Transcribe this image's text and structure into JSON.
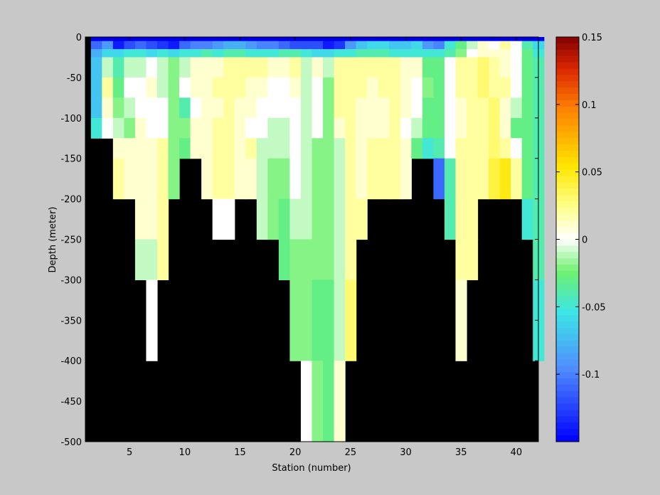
{
  "chart_data": {
    "type": "heatmap",
    "title": "",
    "xlabel": "Station (number)",
    "ylabel": "Depth (meter)",
    "xlim": [
      1,
      42
    ],
    "ylim": [
      -500,
      0
    ],
    "xticks": [
      5,
      10,
      15,
      20,
      25,
      30,
      35,
      40
    ],
    "yticks": [
      0,
      -50,
      -100,
      -150,
      -200,
      -250,
      -300,
      -350,
      -400,
      -450,
      -500
    ],
    "colorbar": {
      "colormap": "jet-like with white at zero",
      "range": [
        -0.15,
        0.15
      ],
      "ticks": [
        0.15,
        0.1,
        0.05,
        0,
        -0.05,
        -0.1
      ],
      "tick_labels": [
        "0.15",
        "0.1",
        "0.05",
        "0",
        "-0.05",
        "-0.1"
      ]
    },
    "mask_color": "#000000",
    "stations": [
      2,
      3,
      4,
      5,
      6,
      7,
      8,
      9,
      10,
      11,
      12,
      13,
      14,
      15,
      16,
      17,
      18,
      19,
      20,
      21,
      22,
      23,
      24,
      25,
      26,
      27,
      28,
      29,
      30,
      31,
      32,
      33,
      34,
      35,
      36,
      37,
      38,
      39,
      40,
      41,
      42
    ],
    "bottom_depth": [
      -125,
      -125,
      -200,
      -200,
      -300,
      -400,
      -200,
      -150,
      -150,
      -200,
      -250,
      -250,
      -200,
      -200,
      -250,
      -250,
      -300,
      -400,
      -400,
      -500,
      -500,
      -500,
      -500,
      -400,
      -250,
      -200,
      -200,
      -200,
      -200,
      -150,
      -150,
      -200,
      -250,
      -400,
      -300,
      -200,
      -200,
      -200,
      -200,
      -400,
      -400
    ],
    "surface_band": {
      "depth": [
        0,
        -5
      ],
      "value": -0.15
    },
    "value_rows": [
      {
        "depth_top": -5,
        "depth_bottom": -15,
        "values": [
          -0.11,
          -0.09,
          -0.14,
          -0.12,
          -0.11,
          -0.12,
          -0.13,
          -0.14,
          -0.11,
          -0.1,
          -0.1,
          -0.09,
          -0.08,
          -0.08,
          -0.09,
          -0.1,
          -0.1,
          -0.11,
          -0.12,
          -0.12,
          -0.12,
          -0.14,
          -0.13,
          -0.09,
          -0.07,
          -0.06,
          -0.06,
          -0.07,
          -0.07,
          -0.06,
          -0.09,
          -0.1,
          -0.05,
          -0.03,
          -0.01,
          0.01,
          0.0,
          0.02,
          0.0,
          -0.04,
          -0.06
        ]
      },
      {
        "depth_top": -15,
        "depth_bottom": -25,
        "values": [
          -0.08,
          -0.06,
          -0.06,
          -0.05,
          -0.05,
          -0.06,
          -0.05,
          -0.06,
          -0.05,
          -0.05,
          -0.04,
          -0.05,
          -0.04,
          -0.04,
          -0.05,
          -0.05,
          -0.05,
          -0.04,
          -0.04,
          -0.05,
          -0.06,
          -0.06,
          -0.05,
          -0.05,
          -0.04,
          -0.04,
          -0.04,
          -0.05,
          -0.05,
          -0.05,
          -0.05,
          -0.05,
          -0.04,
          -0.02,
          0.0,
          0.01,
          0.01,
          0.01,
          0.0,
          -0.03,
          -0.05
        ]
      },
      {
        "depth_top": -25,
        "depth_bottom": -50,
        "values": [
          -0.07,
          -0.01,
          -0.04,
          -0.01,
          -0.01,
          0.0,
          -0.01,
          -0.02,
          -0.01,
          0.01,
          0.01,
          0.01,
          0.02,
          0.02,
          0.02,
          0.02,
          0.01,
          0.01,
          0.02,
          -0.01,
          0.01,
          -0.01,
          0.02,
          0.02,
          0.02,
          0.02,
          0.02,
          0.02,
          0.01,
          0.01,
          -0.03,
          -0.03,
          0.0,
          0.02,
          0.02,
          0.03,
          0.02,
          0.01,
          0.0,
          -0.03,
          -0.04
        ]
      },
      {
        "depth_top": -50,
        "depth_bottom": -75,
        "values": [
          -0.07,
          0.02,
          -0.03,
          0.0,
          0.0,
          0.01,
          -0.01,
          -0.02,
          0.0,
          0.01,
          0.01,
          0.02,
          0.02,
          0.02,
          0.01,
          0.01,
          0.0,
          0.0,
          0.01,
          -0.01,
          0.0,
          -0.02,
          0.02,
          0.02,
          0.02,
          0.01,
          0.02,
          0.02,
          0.01,
          0.0,
          -0.02,
          -0.03,
          0.0,
          0.02,
          0.02,
          0.03,
          0.02,
          0.02,
          0.0,
          -0.03,
          -0.04
        ]
      },
      {
        "depth_top": -75,
        "depth_bottom": -100,
        "values": [
          -0.07,
          0.01,
          -0.02,
          -0.01,
          0.0,
          0.0,
          0.0,
          -0.02,
          -0.04,
          0.0,
          0.01,
          0.01,
          0.02,
          0.01,
          0.01,
          0.0,
          0.0,
          0.0,
          0.0,
          -0.01,
          0.0,
          -0.02,
          0.02,
          0.02,
          0.01,
          0.01,
          0.01,
          0.02,
          0.01,
          0.0,
          -0.03,
          -0.03,
          0.0,
          0.01,
          0.02,
          0.02,
          0.03,
          0.01,
          -0.01,
          -0.03,
          -0.04
        ]
      },
      {
        "depth_top": -100,
        "depth_bottom": -125,
        "values": [
          -0.05,
          0.0,
          -0.01,
          -0.02,
          0.01,
          0.0,
          0.0,
          -0.02,
          -0.02,
          0.01,
          0.01,
          0.02,
          0.02,
          0.01,
          0.0,
          0.0,
          -0.01,
          -0.01,
          0.0,
          -0.01,
          0.0,
          -0.02,
          0.01,
          0.02,
          0.01,
          0.01,
          0.01,
          0.02,
          0.0,
          -0.01,
          -0.03,
          -0.03,
          0.0,
          0.01,
          0.02,
          0.02,
          0.03,
          0.01,
          -0.03,
          -0.03,
          -0.04
        ]
      },
      {
        "depth_top": -125,
        "depth_bottom": -150,
        "values": [
          null,
          null,
          0.01,
          0.01,
          0.01,
          0.01,
          0.02,
          -0.02,
          -0.03,
          0.01,
          0.01,
          0.02,
          0.02,
          0.01,
          0.02,
          -0.01,
          -0.01,
          -0.01,
          0.0,
          -0.01,
          -0.02,
          -0.02,
          -0.01,
          0.02,
          0.01,
          0.02,
          0.02,
          0.02,
          0.01,
          -0.03,
          -0.05,
          -0.04,
          0.0,
          0.02,
          0.02,
          0.02,
          0.03,
          0.02,
          0.0,
          -0.03,
          -0.04
        ]
      },
      {
        "depth_top": -150,
        "depth_bottom": -200,
        "values": [
          null,
          null,
          0.02,
          0.01,
          0.01,
          0.01,
          0.02,
          -0.02,
          null,
          null,
          0.01,
          0.02,
          0.02,
          0.01,
          0.01,
          -0.01,
          -0.02,
          -0.02,
          0.0,
          -0.01,
          -0.02,
          -0.02,
          -0.01,
          0.02,
          0.01,
          0.02,
          0.02,
          0.02,
          0.01,
          null,
          null,
          -0.11,
          -0.04,
          0.02,
          0.02,
          0.02,
          0.04,
          0.05,
          0.02,
          -0.03,
          -0.04
        ]
      },
      {
        "depth_top": -200,
        "depth_bottom": -250,
        "values": [
          null,
          null,
          null,
          null,
          0.01,
          0.01,
          0.02,
          null,
          null,
          null,
          null,
          0.0,
          0.0,
          null,
          null,
          -0.01,
          -0.02,
          -0.03,
          -0.01,
          -0.01,
          -0.02,
          -0.02,
          -0.01,
          0.02,
          0.02,
          null,
          null,
          null,
          null,
          null,
          null,
          null,
          -0.04,
          0.02,
          0.02,
          null,
          null,
          null,
          null,
          -0.05,
          -0.04
        ]
      },
      {
        "depth_top": -250,
        "depth_bottom": -300,
        "values": [
          null,
          null,
          null,
          null,
          -0.01,
          -0.01,
          0.02,
          null,
          null,
          null,
          null,
          null,
          null,
          null,
          null,
          null,
          null,
          -0.03,
          -0.02,
          -0.02,
          -0.02,
          -0.02,
          -0.01,
          0.02,
          null,
          null,
          null,
          null,
          null,
          null,
          null,
          null,
          null,
          0.02,
          0.02,
          null,
          null,
          null,
          null,
          null,
          -0.04
        ]
      },
      {
        "depth_top": -300,
        "depth_bottom": -400,
        "values": [
          null,
          null,
          null,
          null,
          null,
          0.0,
          null,
          null,
          null,
          null,
          null,
          null,
          null,
          null,
          null,
          null,
          null,
          null,
          -0.02,
          -0.02,
          -0.03,
          -0.03,
          -0.01,
          0.03,
          null,
          null,
          null,
          null,
          null,
          null,
          null,
          null,
          null,
          0.01,
          null,
          null,
          null,
          null,
          null,
          null,
          -0.05
        ]
      },
      {
        "depth_top": -400,
        "depth_bottom": -500,
        "values": [
          null,
          null,
          null,
          null,
          null,
          null,
          null,
          null,
          null,
          null,
          null,
          null,
          null,
          null,
          null,
          null,
          null,
          null,
          null,
          0.0,
          -0.02,
          -0.03,
          0.01,
          null,
          null,
          null,
          null,
          null,
          null,
          null,
          null,
          null,
          null,
          null,
          null,
          null,
          null,
          null,
          null,
          null,
          null
        ]
      }
    ]
  }
}
